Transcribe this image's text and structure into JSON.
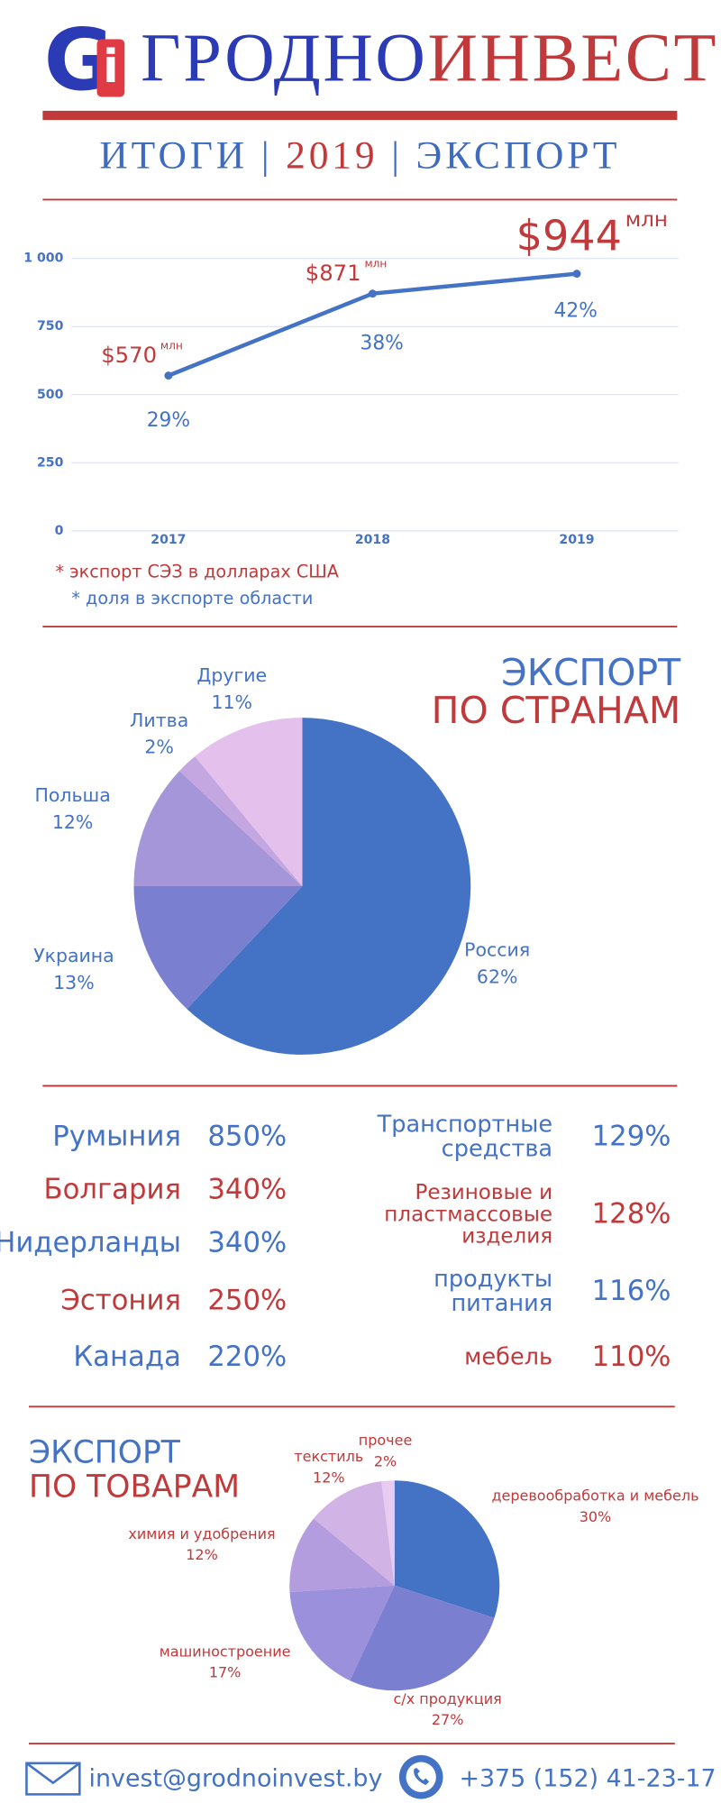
{
  "header": {
    "logo": [
      "G",
      "i"
    ],
    "title": [
      "ГРОДНО",
      "ИНВЕСТ"
    ],
    "subtitle": [
      "ИТОГИ",
      "2019",
      "ЭКСПОРТ"
    ],
    "separator": "|"
  },
  "chart_data": [
    {
      "type": "line",
      "categories": [
        "2017",
        "2018",
        "2019"
      ],
      "series": [
        {
          "color": "#4472c4",
          "values": [
            570,
            871,
            944
          ],
          "value_labels": [
            "$570",
            "$871",
            "$944"
          ],
          "unit": "млн"
        }
      ],
      "shares": {
        "values": [
          29,
          38,
          42
        ],
        "value_labels": [
          "29%",
          "38%",
          "42%"
        ]
      },
      "ylim": [
        0,
        1000
      ],
      "yticks": [
        0,
        250,
        500,
        750,
        {
          "value": 1000,
          "label": "1 000"
        }
      ],
      "grid": true,
      "notes": [
        "* экспорт СЭЗ в долларах США",
        "* доля в экспорте области"
      ]
    },
    {
      "type": "pie",
      "title": [
        "ЭКСПОРТ",
        "ПО СТРАНАМ"
      ],
      "categories": [
        "Россия",
        "Украина",
        "Польша",
        "Литва",
        "Другие"
      ],
      "values": [
        62,
        13,
        12,
        2,
        11
      ],
      "value_labels": [
        "62%",
        "13%",
        "12%",
        "2%",
        "11%"
      ],
      "colors": [
        "#4472c4",
        "#7b7fcf",
        "#a595d9",
        "#c4a6e0",
        "#e4c1ed"
      ]
    },
    {
      "type": "pie",
      "title": [
        "ЭКСПОРТ",
        "ПО ТОВАРАМ"
      ],
      "categories": [
        "деревообработка и мебель",
        "с/х продукция",
        "машиностроение",
        "химия и удобрения",
        "текстиль",
        "прочее"
      ],
      "values": [
        30,
        27,
        17,
        12,
        12,
        2
      ],
      "value_labels": [
        "30%",
        "27%",
        "17%",
        "12%",
        "12%",
        "2%"
      ],
      "colors": [
        "#4472c4",
        "#7b7fcf",
        "#9a90db",
        "#b39ddf",
        "#d1b3e6",
        "#e8cbf0"
      ]
    }
  ],
  "rankings": {
    "countries": [
      [
        "Румыния",
        "850%"
      ],
      [
        "Болгария",
        "340%"
      ],
      [
        "Нидерланды",
        "340%"
      ],
      [
        "Эстония",
        "250%"
      ],
      [
        "Канада",
        "220%"
      ]
    ],
    "goods": [
      [
        [
          "Транспортные",
          "средства"
        ],
        "129%"
      ],
      [
        [
          "Резиновые и",
          "пластмассовые",
          "изделия"
        ],
        "128%"
      ],
      [
        [
          "продукты",
          "питания"
        ],
        "116%"
      ],
      [
        [
          "мебель"
        ],
        "110%"
      ]
    ]
  },
  "footer": {
    "email": "invest@grodnoinvest.by",
    "phone": "+375 (152) 41-23-17"
  }
}
